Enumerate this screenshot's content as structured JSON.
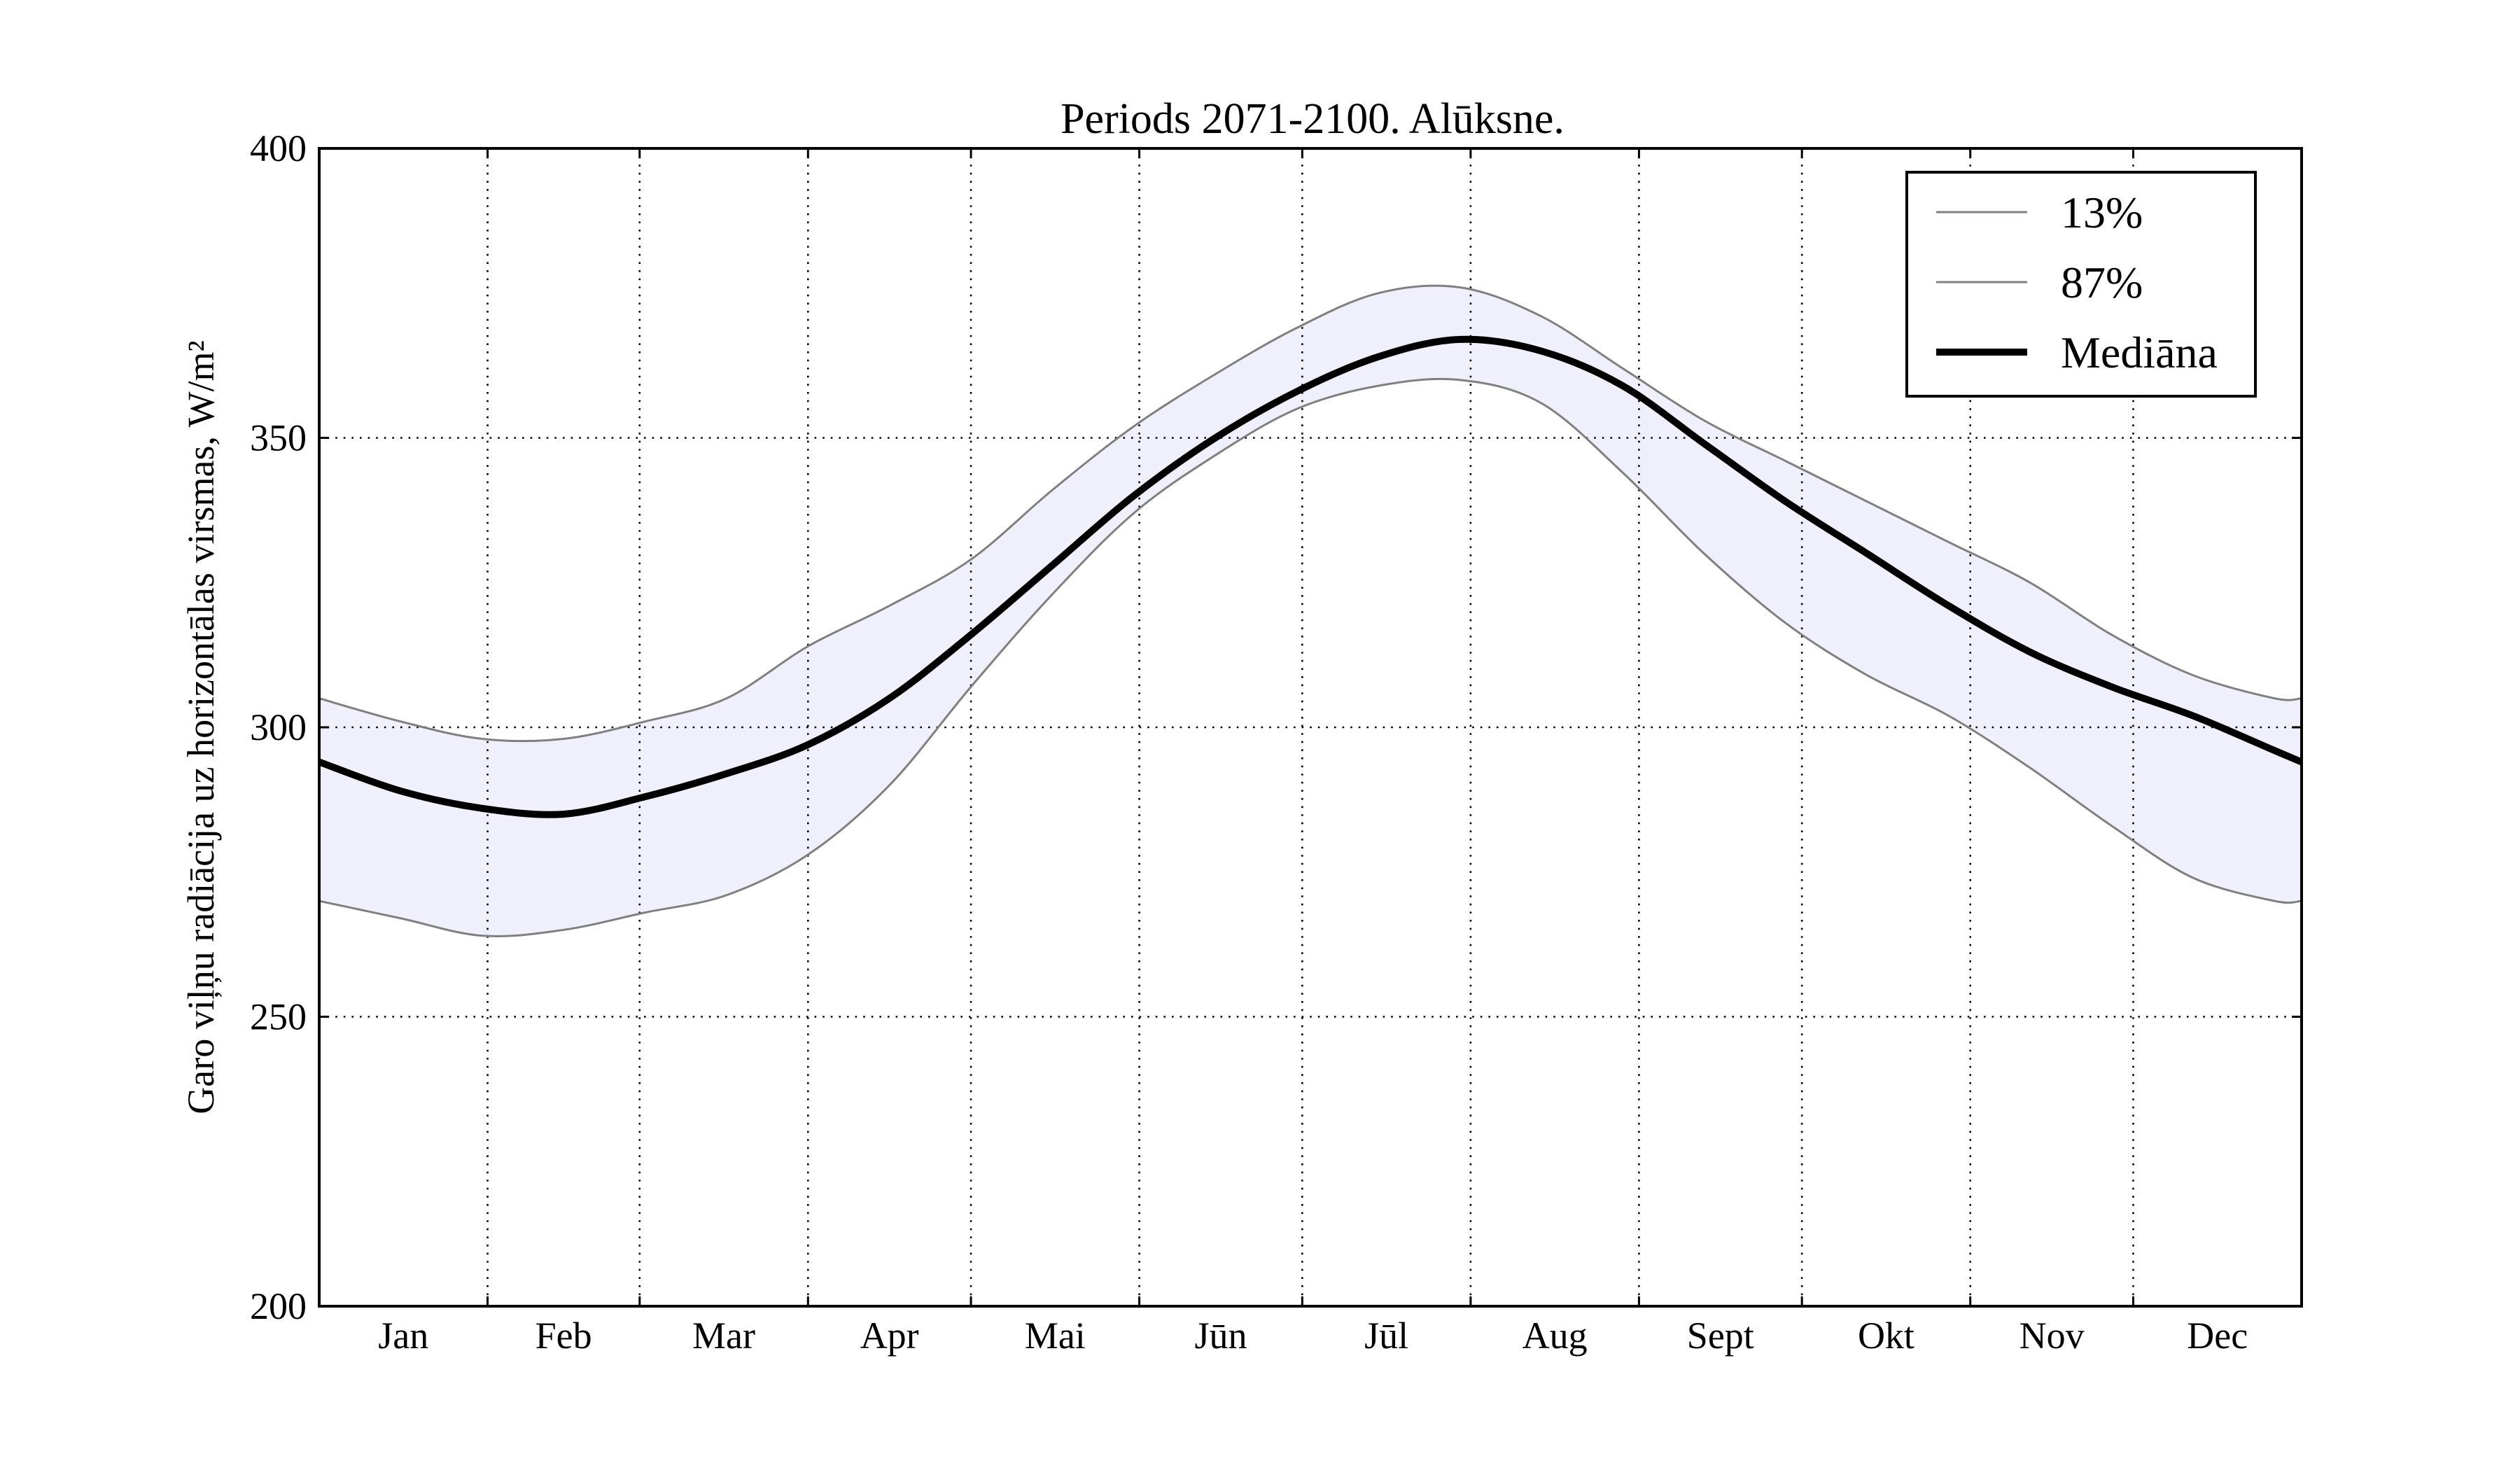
{
  "chart_data": {
    "type": "line",
    "title": "Periods 2071-2100. Alūksne.",
    "ylabel": "Garo viļņu radiācija uz horizontālas virsmas, W/m²",
    "xlabel": "",
    "ylim": [
      200,
      400
    ],
    "yticks": [
      "200",
      "250",
      "300",
      "350",
      "400"
    ],
    "months": [
      "Jan",
      "Feb",
      "Mar",
      "Apr",
      "Mai",
      "Jūn",
      "Jūl",
      "Aug",
      "Sept",
      "Okt",
      "Nov",
      "Dec"
    ],
    "grid": true,
    "legend_position": "top-right",
    "band_color": "#f0f0fc",
    "x": [
      0,
      15,
      30,
      45,
      60,
      75,
      90,
      105,
      120,
      135,
      150,
      165,
      180,
      195,
      210,
      225,
      240,
      255,
      270,
      285,
      300,
      315,
      330,
      345,
      360,
      365
    ],
    "series": [
      {
        "name": "13%",
        "color": "#808080",
        "width": 3,
        "values": [
          270,
          267,
          264,
          265,
          268,
          271,
          278,
          290,
          307,
          323,
          337,
          347,
          355,
          359,
          360,
          356,
          344,
          330,
          318,
          309,
          302,
          293,
          283,
          274,
          270,
          270
        ]
      },
      {
        "name": "87%",
        "color": "#808080",
        "width": 3,
        "values": [
          305,
          301,
          298,
          298,
          301,
          305,
          314,
          321,
          329,
          341,
          352,
          361,
          369,
          375,
          376,
          371,
          362,
          353,
          346,
          339,
          332,
          325,
          316,
          309,
          305,
          305
        ]
      },
      {
        "name": "Mediāna",
        "color": "#000000",
        "width": 10,
        "values": [
          294,
          289,
          286,
          285,
          288,
          292,
          297,
          305,
          316,
          328,
          340,
          350,
          358,
          364,
          367,
          365,
          359,
          349,
          339,
          330,
          321,
          313,
          307,
          302,
          296,
          294
        ]
      }
    ]
  }
}
